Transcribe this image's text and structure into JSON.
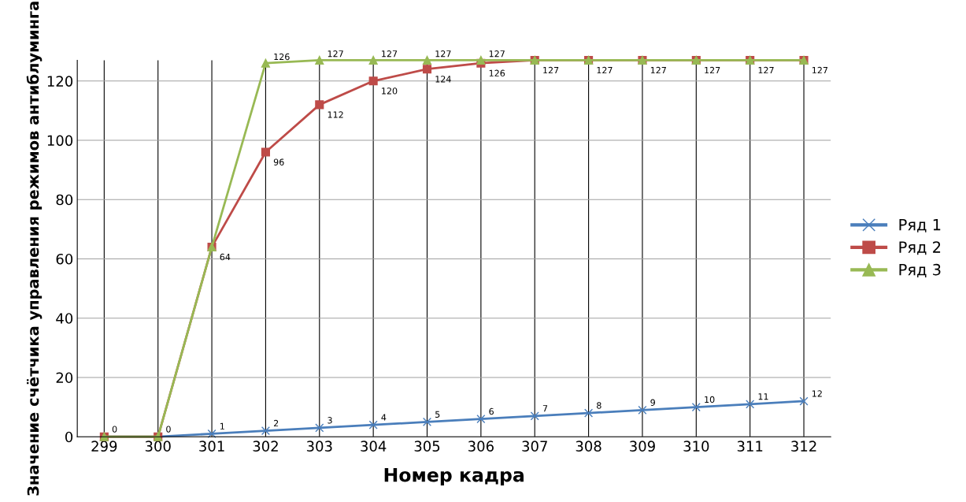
{
  "chart_data": {
    "type": "line",
    "xlabel": "Номер кадра",
    "ylabel": "Значение счётчика управления режимов антиблуминга",
    "categories": [
      "299",
      "300",
      "301",
      "302",
      "303",
      "304",
      "305",
      "306",
      "307",
      "308",
      "309",
      "310",
      "311",
      "312"
    ],
    "series": [
      {
        "name": "Ряд 1",
        "color": "#4a7ebb",
        "marker": "cross",
        "values": [
          0,
          0,
          1,
          2,
          3,
          4,
          5,
          6,
          7,
          8,
          9,
          10,
          11,
          12
        ],
        "value_labels": [
          "0",
          "0",
          "1",
          "2",
          "3",
          "4",
          "5",
          "6",
          "7",
          "8",
          "9",
          "10",
          "11",
          "12"
        ]
      },
      {
        "name": "Ряд 2",
        "color": "#be4b48",
        "marker": "square",
        "values": [
          0,
          0,
          64,
          96,
          112,
          120,
          124,
          126,
          127,
          127,
          127,
          127,
          127,
          127
        ],
        "value_labels": [
          null,
          null,
          "64",
          "96",
          "112",
          "120",
          "124",
          "126",
          "127",
          "127",
          "127",
          "127",
          "127",
          "127"
        ]
      },
      {
        "name": "Ряд 3",
        "color": "#98b954",
        "marker": "triangle",
        "values": [
          0,
          0,
          64,
          126,
          127,
          127,
          127,
          127,
          127,
          127,
          127,
          127,
          127,
          127
        ],
        "value_labels": [
          null,
          null,
          null,
          "126",
          "127",
          "127",
          "127",
          "127",
          null,
          null,
          null,
          null,
          null,
          null
        ]
      }
    ],
    "ylim": [
      0,
      127
    ],
    "yticks": [
      0,
      20,
      40,
      60,
      80,
      100,
      120
    ],
    "grid": true,
    "legend": "right"
  }
}
